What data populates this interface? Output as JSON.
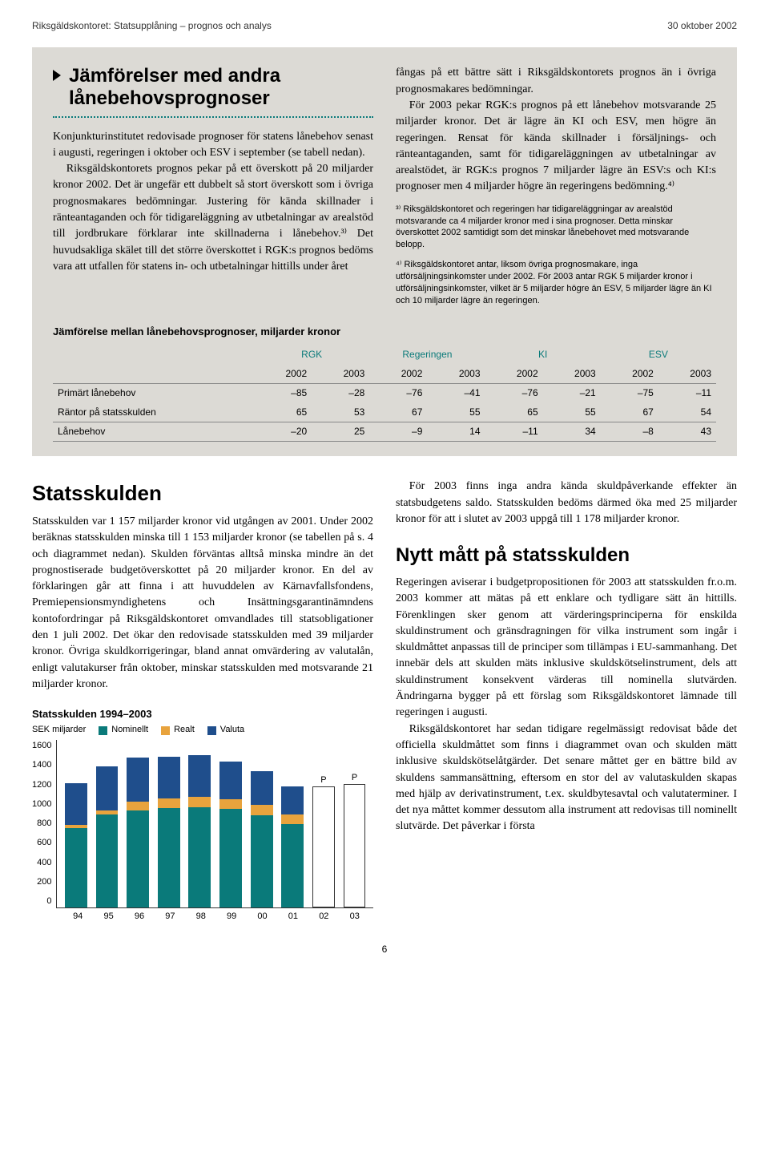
{
  "header": {
    "left": "Riksgäldskontoret: Statsupplåning – prognos och analys",
    "right": "30 oktober 2002"
  },
  "section1": {
    "title": "Jämförelser med andra lånebehovsprognoser",
    "left_pars": [
      "Konjunkturinstitutet redovisade prognoser för statens lånebehov senast i augusti, regeringen i oktober och ESV i september (se tabell nedan).",
      "Riksgäldskontorets prognos pekar på ett överskott på 20 miljarder kronor 2002. Det är ungefär ett dubbelt så stort överskott som i övriga prognosmakares bedömningar. Justering för kända skillnader i ränteantaganden och för tidigareläggning av utbetalningar av arealstöd till jordbrukare förklarar inte skillnaderna i lånebehov.³⁾ Det huvudsakliga skälet till det större överskottet i RGK:s prognos bedöms vara att utfallen för statens in- och utbetalningar hittills under året"
    ],
    "right_pars": [
      "fångas på ett bättre sätt i Riksgäldskontorets prognos än i övriga prognosmakares bedömningar.",
      "För 2003 pekar RGK:s prognos på ett lånebehov motsvarande 25 miljarder kronor. Det är lägre än KI och ESV, men högre än regeringen. Rensat för kända skillnader i försäljnings- och ränteantaganden, samt för tidigareläggningen av utbetalningar av arealstödet, är RGK:s prognos 7 miljarder lägre än ESV:s och KI:s prognoser men 4 miljarder högre än regeringens bedömning.⁴⁾"
    ],
    "footnote3": "³⁾ Riksgäldskontoret och regeringen har tidigareläggningar av arealstöd motsvarande ca 4 miljarder kronor med i sina prognoser. Detta minskar överskottet 2002 samtidigt som det minskar lånebehovet med motsvarande belopp.",
    "footnote4": "⁴⁾ Riksgäldskontoret antar, liksom övriga prognosmakare, inga utförsäljningsinkomster under 2002. För 2003 antar RGK 5 miljarder kronor i utförsäljningsinkomster, vilket är 5 miljarder högre än ESV, 5 miljarder lägre än KI och 10 miljarder lägre än regeringen."
  },
  "table": {
    "title": "Jämförelse mellan lånebehovsprognoser, miljarder kronor",
    "groups": [
      "RGK",
      "Regeringen",
      "KI",
      "ESV"
    ],
    "years": [
      "2002",
      "2003",
      "2002",
      "2003",
      "2002",
      "2003",
      "2002",
      "2003"
    ],
    "rows": [
      {
        "label": "Primärt lånebehov",
        "vals": [
          "–85",
          "–28",
          "–76",
          "–41",
          "–76",
          "–21",
          "–75",
          "–11"
        ]
      },
      {
        "label": "Räntor på statsskulden",
        "vals": [
          "65",
          "53",
          "67",
          "55",
          "65",
          "55",
          "67",
          "54"
        ]
      },
      {
        "label": "Lånebehov",
        "vals": [
          "–20",
          "25",
          "–9",
          "14",
          "–11",
          "34",
          "–8",
          "43"
        ]
      }
    ]
  },
  "statsskulden": {
    "title": "Statsskulden",
    "pars": [
      "Statsskulden var 1 157 miljarder kronor vid utgången av 2001. Under 2002 beräknas statsskulden minska till 1 153 miljarder kronor (se tabellen på s. 4 och diagrammet nedan). Skulden förväntas alltså minska mindre än det prognostiserade budgetöverskottet på 20 miljarder kronor. En del av förklaringen går att finna i att huvuddelen av Kärnavfallsfondens, Premiepensionsmyndighetens och Insättningsgarantinämndens kontofordringar på Riksgäldskontoret omvandlades till statsobligationer den 1 juli 2002. Det ökar den redovisade statsskulden med 39 miljarder kronor. Övriga skuldkorrigeringar, bland annat omvärdering av valutalån, enligt valutakurser från oktober, minskar statsskulden med motsvarande 21 miljarder kronor."
    ]
  },
  "right_lower": {
    "intro": "För 2003 finns inga andra kända skuldpåverkande effekter än statsbudgetens saldo. Statsskulden bedöms därmed öka med 25 miljarder kronor för att i slutet av 2003 uppgå till 1 178 miljarder kronor.",
    "sub_title": "Nytt mått på statsskulden",
    "pars": [
      "Regeringen aviserar i budgetpropositionen för 2003 att statsskulden fr.o.m. 2003 kommer att mätas på ett enklare och tydligare sätt än hittills. Förenklingen sker genom att värderingsprinciperna för enskilda skuldinstrument och gränsdragningen för vilka instrument som ingår i skuldmåttet anpassas till de principer som tillämpas i EU-sammanhang. Det innebär dels att skulden mäts inklusive skuldskötselinstrument, dels att skuldinstrument konsekvent värderas till nominella slutvärden. Ändringarna bygger på ett förslag som Riksgäldskontoret lämnade till regeringen i augusti.",
      "Riksgäldskontoret har sedan tidigare regelmässigt redovisat både det officiella skuldmåttet som finns i diagrammet ovan och skulden mätt inklusive skuldskötselåtgärder. Det senare måttet ger en bättre bild av skuldens sammansättning, eftersom en stor del av valutaskulden skapas med hjälp av derivatinstrument, t.ex. skuldbytesavtal och valutaterminer. I det nya måttet kommer dessutom alla instrument att redovisas till nominellt slutvärde. Det påverkar i första"
    ]
  },
  "chart": {
    "title": "Statsskulden 1994–2003",
    "y_label": "SEK miljarder",
    "legend": [
      {
        "label": "Nominellt",
        "color": "#0a7a7a"
      },
      {
        "label": "Realt",
        "color": "#e8a33d"
      },
      {
        "label": "Valuta",
        "color": "#1f4e8c"
      }
    ],
    "y_ticks": [
      "1600",
      "1400",
      "1200",
      "1000",
      "800",
      "600",
      "400",
      "200",
      "0"
    ],
    "y_max": 1600,
    "x_labels": [
      "94",
      "95",
      "96",
      "97",
      "98",
      "99",
      "00",
      "01",
      "02",
      "03"
    ],
    "series_colors": {
      "nominellt": "#0a7a7a",
      "realt": "#e8a33d",
      "valuta": "#1f4e8c"
    },
    "bars": [
      {
        "nominellt": 760,
        "realt": 30,
        "valuta": 400,
        "outline": false
      },
      {
        "nominellt": 890,
        "realt": 40,
        "valuta": 420,
        "outline": false
      },
      {
        "nominellt": 930,
        "realt": 80,
        "valuta": 420,
        "outline": false
      },
      {
        "nominellt": 950,
        "realt": 90,
        "valuta": 400,
        "outline": false
      },
      {
        "nominellt": 960,
        "realt": 95,
        "valuta": 400,
        "outline": false
      },
      {
        "nominellt": 940,
        "realt": 95,
        "valuta": 360,
        "outline": false
      },
      {
        "nominellt": 880,
        "realt": 100,
        "valuta": 320,
        "outline": false
      },
      {
        "nominellt": 800,
        "realt": 90,
        "valuta": 270,
        "outline": false
      },
      {
        "nominellt": 0,
        "realt": 0,
        "valuta": 0,
        "outline": true,
        "total": 1153,
        "p": "P"
      },
      {
        "nominellt": 0,
        "realt": 0,
        "valuta": 0,
        "outline": true,
        "total": 1178,
        "p": "P"
      }
    ]
  },
  "page_number": "6"
}
